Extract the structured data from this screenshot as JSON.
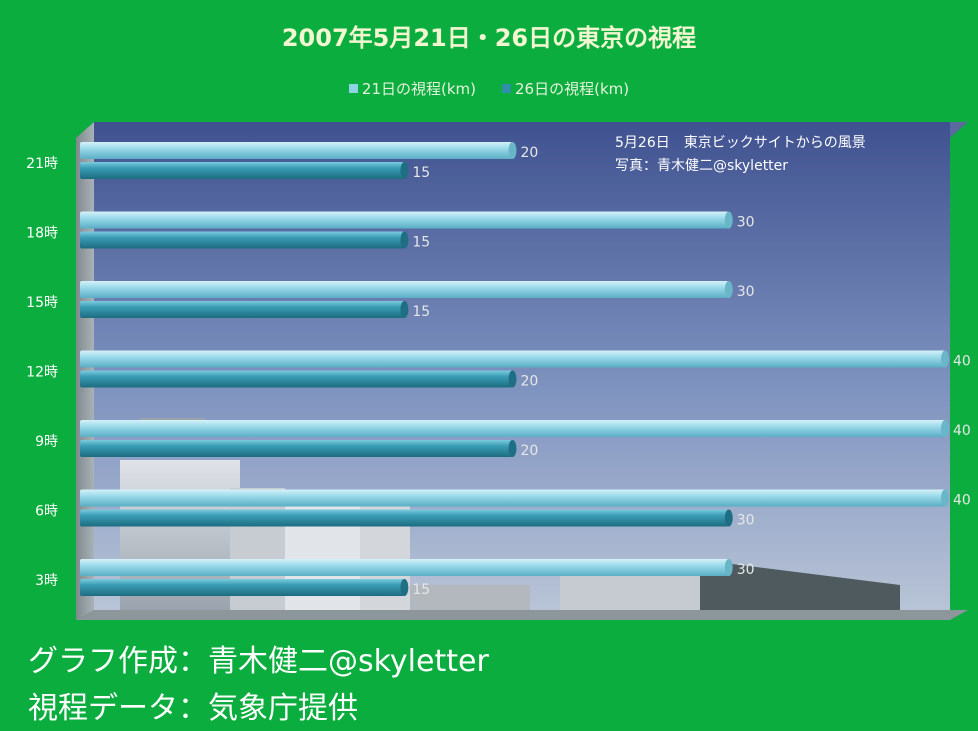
{
  "chart_data": {
    "type": "bar",
    "orientation": "horizontal",
    "title": "2007年5月21日・26日の東京の視程",
    "categories": [
      "21時",
      "18時",
      "15時",
      "12時",
      "9時",
      "6時",
      "3時"
    ],
    "series": [
      {
        "name": "21日の視程(km)",
        "values": [
          20,
          30,
          30,
          40,
          40,
          40,
          30
        ],
        "color": "#8ed2e6"
      },
      {
        "name": "26日の視程(km)",
        "values": [
          15,
          15,
          15,
          20,
          20,
          30,
          15
        ],
        "color": "#2e8fa7"
      }
    ],
    "xlim": [
      0,
      40
    ],
    "legend_position": "top",
    "grid": false,
    "style": "3d-cylinder"
  },
  "photo_caption": {
    "line1": "5月26日　東京ビックサイトからの風景",
    "line2": "写真：青木健二@skyletter"
  },
  "footer": {
    "line1": "グラフ作成：青木健二@skyletter",
    "line2": "視程データ：気象庁提供"
  },
  "colors": {
    "background": "#0aad3e",
    "title": "#f2f7d2",
    "sky_top": "#4a5e92",
    "sky_bottom": "#a6b7d2"
  }
}
